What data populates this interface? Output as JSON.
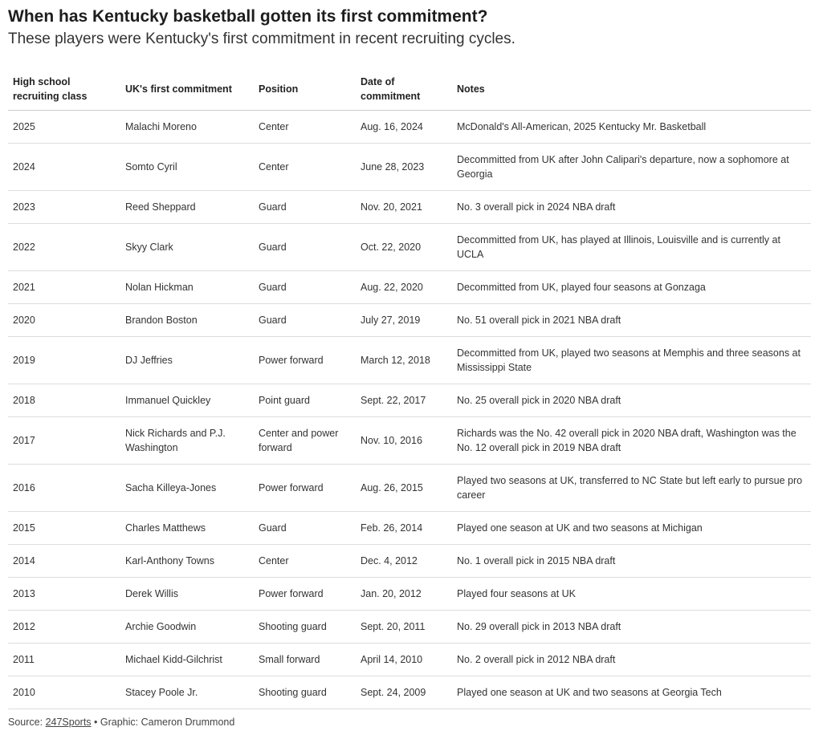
{
  "header": {
    "title": "When has Kentucky basketball gotten its first commitment?",
    "subtitle": "These players were Kentucky's first commitment in recent recruiting cycles."
  },
  "table": {
    "columns": [
      "High school recruiting class",
      "UK's first commitment",
      "Position",
      "Date of commitment",
      "Notes"
    ],
    "rows": [
      [
        "2025",
        "Malachi Moreno",
        "Center",
        "Aug. 16, 2024",
        "McDonald's All-American, 2025 Kentucky Mr. Basketball"
      ],
      [
        "2024",
        "Somto Cyril",
        "Center",
        "June 28, 2023",
        "Decommitted from UK after John Calipari's departure, now a sophomore at Georgia"
      ],
      [
        "2023",
        "Reed Sheppard",
        "Guard",
        "Nov. 20, 2021",
        "No. 3 overall pick in 2024 NBA draft"
      ],
      [
        "2022",
        "Skyy Clark",
        "Guard",
        "Oct. 22, 2020",
        "Decommitted from UK, has played at Illinois, Louisville and is currently at UCLA"
      ],
      [
        "2021",
        "Nolan Hickman",
        "Guard",
        "Aug. 22, 2020",
        "Decommitted from UK, played four seasons at Gonzaga"
      ],
      [
        "2020",
        "Brandon Boston",
        "Guard",
        "July 27, 2019",
        "No. 51 overall pick in 2021 NBA draft"
      ],
      [
        "2019",
        "DJ Jeffries",
        "Power forward",
        "March 12, 2018",
        "Decommitted from UK, played two seasons at Memphis and three seasons at Mississippi State"
      ],
      [
        "2018",
        "Immanuel Quickley",
        "Point guard",
        "Sept. 22, 2017",
        "No. 25 overall pick in 2020 NBA draft"
      ],
      [
        "2017",
        "Nick Richards and P.J. Washington",
        "Center and power forward",
        "Nov. 10, 2016",
        "Richards was the No. 42 overall pick in 2020 NBA draft, Washington was the No. 12 overall pick in 2019 NBA draft"
      ],
      [
        "2016",
        "Sacha Killeya-Jones",
        "Power forward",
        "Aug. 26, 2015",
        "Played two seasons at UK, transferred to NC State but left early to pursue pro career"
      ],
      [
        "2015",
        "Charles Matthews",
        "Guard",
        "Feb. 26, 2014",
        "Played one season at UK and two seasons at Michigan"
      ],
      [
        "2014",
        "Karl-Anthony Towns",
        "Center",
        "Dec. 4, 2012",
        "No. 1 overall pick in 2015 NBA draft"
      ],
      [
        "2013",
        "Derek Willis",
        "Power forward",
        "Jan. 20, 2012",
        "Played four seasons at UK"
      ],
      [
        "2012",
        "Archie Goodwin",
        "Shooting guard",
        "Sept. 20, 2011",
        "No. 29 overall pick in 2013 NBA draft"
      ],
      [
        "2011",
        "Michael Kidd-Gilchrist",
        "Small forward",
        "April 14, 2010",
        "No. 2 overall pick in 2012 NBA draft"
      ],
      [
        "2010",
        "Stacey Poole Jr.",
        "Shooting guard",
        "Sept. 24, 2009",
        "Played one season at UK and two seasons at Georgia Tech"
      ]
    ]
  },
  "footer": {
    "source_label": "Source:",
    "source_link": "247Sports",
    "credit": "• Graphic: Cameron Drummond"
  }
}
